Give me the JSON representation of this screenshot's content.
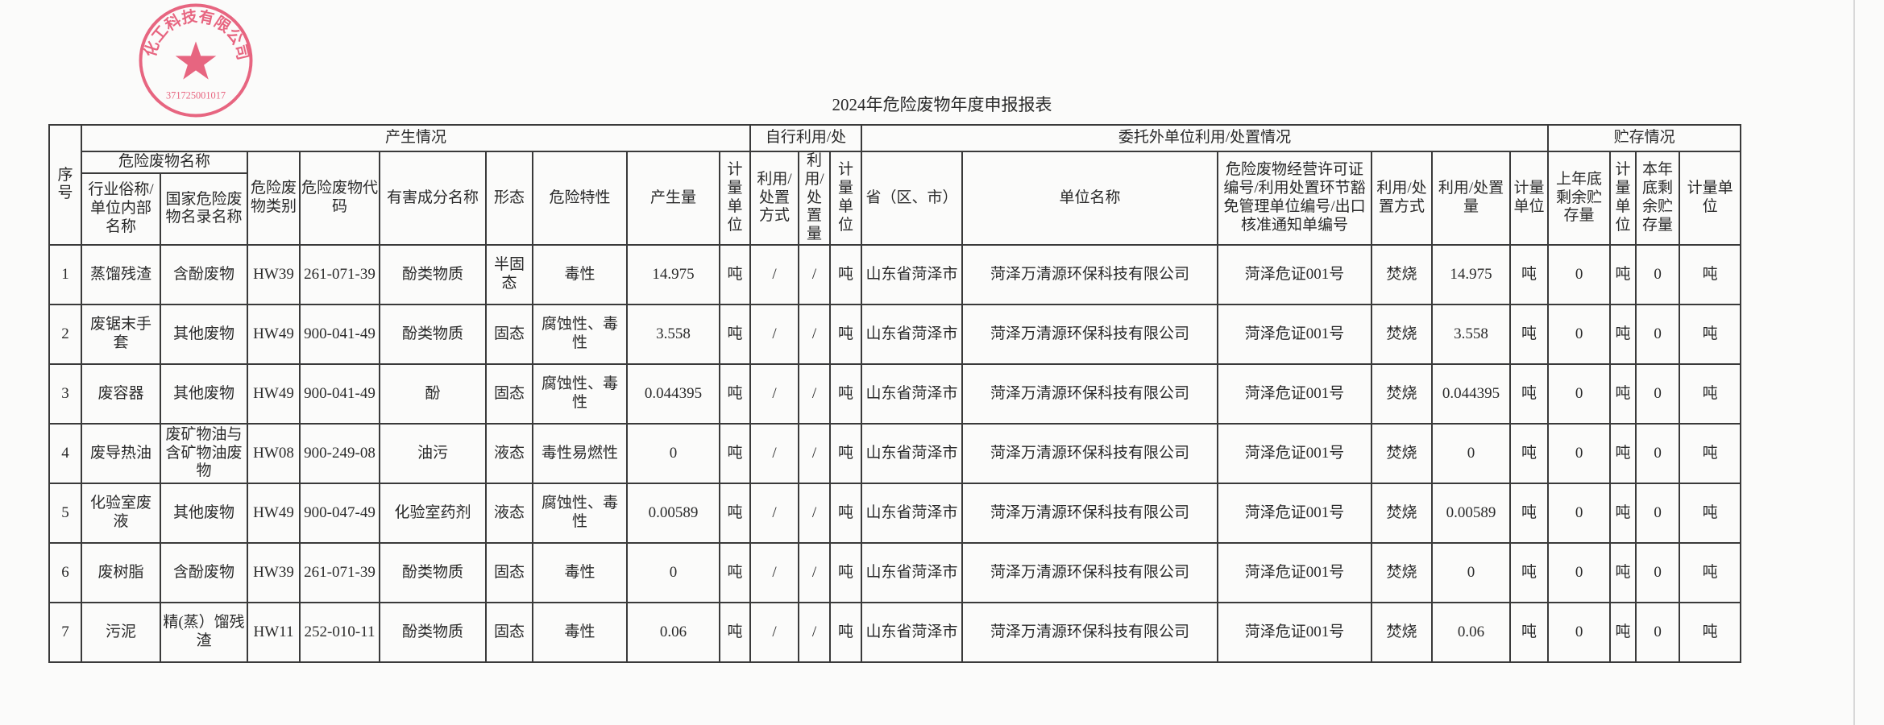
{
  "title": "2024年危险废物年度申报报表",
  "stamp": {
    "text": "化工科技有限公司",
    "code": "371725001017",
    "color": "#e23b5e"
  },
  "headers": {
    "seq": "序号",
    "production": "产生情况",
    "self_use": "自行利用/处",
    "entrusted": "委托外单位利用/处置情况",
    "storage": "贮存情况",
    "waste_name": "危险废物名称",
    "columns": [
      "行业俗称/单位内部名称",
      "国家危险废物名录名称",
      "危险废物类别",
      "危险废物代码",
      "有害成分名称",
      "形态",
      "危险特性",
      "产生量",
      "计量单位",
      "利用/处置方式",
      "利用/处置量",
      "计量单位",
      "省（区、市）",
      "单位名称",
      "危险废物经营许可证编号/利用处置环节豁免管理单位编号/出口核准通知单编号",
      "利用/处置方式",
      "利用/处置量",
      "计量单位",
      "上年底剩余贮存量",
      "计量单位",
      "本年底剩余贮存量",
      "计量单位"
    ]
  },
  "rows": [
    [
      "1",
      "蒸馏残渣",
      "含酚废物",
      "HW39",
      "261-071-39",
      "酚类物质",
      "半固态",
      "毒性",
      "14.975",
      "吨",
      "/",
      "/",
      "吨",
      "山东省菏泽市",
      "菏泽万清源环保科技有限公司",
      "菏泽危证001号",
      "焚烧",
      "14.975",
      "吨",
      "0",
      "吨",
      "0",
      "吨"
    ],
    [
      "2",
      "废锯末手套",
      "其他废物",
      "HW49",
      "900-041-49",
      "酚类物质",
      "固态",
      "腐蚀性、毒性",
      "3.558",
      "吨",
      "/",
      "/",
      "吨",
      "山东省菏泽市",
      "菏泽万清源环保科技有限公司",
      "菏泽危证001号",
      "焚烧",
      "3.558",
      "吨",
      "0",
      "吨",
      "0",
      "吨"
    ],
    [
      "3",
      "废容器",
      "其他废物",
      "HW49",
      "900-041-49",
      "酚",
      "固态",
      "腐蚀性、毒性",
      "0.044395",
      "吨",
      "/",
      "/",
      "吨",
      "山东省菏泽市",
      "菏泽万清源环保科技有限公司",
      "菏泽危证001号",
      "焚烧",
      "0.044395",
      "吨",
      "0",
      "吨",
      "0",
      "吨"
    ],
    [
      "4",
      "废导热油",
      "废矿物油与含矿物油废物",
      "HW08",
      "900-249-08",
      "油污",
      "液态",
      "毒性易燃性",
      "0",
      "吨",
      "/",
      "/",
      "吨",
      "山东省菏泽市",
      "菏泽万清源环保科技有限公司",
      "菏泽危证001号",
      "焚烧",
      "0",
      "吨",
      "0",
      "吨",
      "0",
      "吨"
    ],
    [
      "5",
      "化验室废液",
      "其他废物",
      "HW49",
      "900-047-49",
      "化验室药剂",
      "液态",
      "腐蚀性、毒性",
      "0.00589",
      "吨",
      "/",
      "/",
      "吨",
      "山东省菏泽市",
      "菏泽万清源环保科技有限公司",
      "菏泽危证001号",
      "焚烧",
      "0.00589",
      "吨",
      "0",
      "吨",
      "0",
      "吨"
    ],
    [
      "6",
      "废树脂",
      "含酚废物",
      "HW39",
      "261-071-39",
      "酚类物质",
      "固态",
      "毒性",
      "0",
      "吨",
      "/",
      "/",
      "吨",
      "山东省菏泽市",
      "菏泽万清源环保科技有限公司",
      "菏泽危证001号",
      "焚烧",
      "0",
      "吨",
      "0",
      "吨",
      "0",
      "吨"
    ],
    [
      "7",
      "污泥",
      "精(蒸）馏残渣",
      "HW11",
      "252-010-11",
      "酚类物质",
      "固态",
      "毒性",
      "0.06",
      "吨",
      "/",
      "/",
      "吨",
      "山东省菏泽市",
      "菏泽万清源环保科技有限公司",
      "菏泽危证001号",
      "焚烧",
      "0.06",
      "吨",
      "0",
      "吨",
      "0",
      "吨"
    ]
  ]
}
